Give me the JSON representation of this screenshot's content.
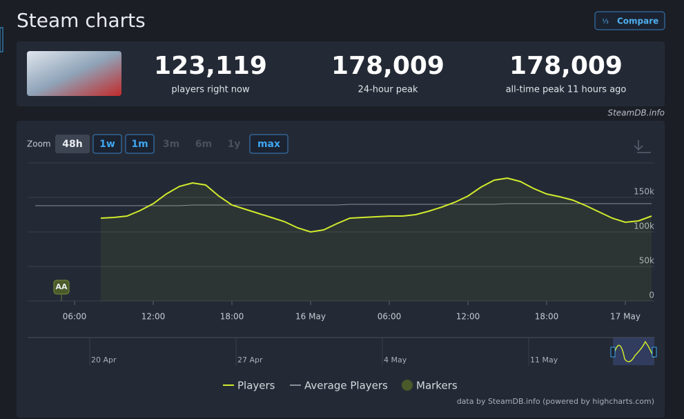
{
  "header": {
    "title": "Steam charts",
    "compare_button": "Compare"
  },
  "stats": [
    {
      "value": "123,119",
      "label": "players right now"
    },
    {
      "value": "178,009",
      "label": "24-hour peak"
    },
    {
      "value": "178,009",
      "label": "all-time peak 11 hours ago"
    }
  ],
  "source": "SteamDB.info",
  "zoom": {
    "label": "Zoom",
    "buttons": [
      "48h",
      "1w",
      "1m",
      "3m",
      "6m",
      "1y",
      "max"
    ],
    "active": 0,
    "disabled": [
      3,
      4,
      5
    ]
  },
  "chart_data": {
    "type": "line",
    "categories": [
      null,
      null,
      null,
      "06:00",
      null,
      null,
      null,
      null,
      null,
      "12:00",
      null,
      null,
      null,
      null,
      null,
      "18:00",
      null,
      null,
      null,
      null,
      null,
      "16 May",
      null,
      null,
      null,
      null,
      null,
      "06:00",
      null,
      null,
      null,
      null,
      null,
      "12:00",
      null,
      null,
      null,
      null,
      null,
      "18:00",
      null,
      null,
      null,
      null,
      null,
      "17 May",
      null,
      null
    ],
    "series": [
      {
        "name": "Players",
        "color": "#d2ec2d",
        "values": [
          null,
          null,
          null,
          null,
          null,
          120000,
          121000,
          123000,
          131000,
          141000,
          155000,
          166000,
          171000,
          168000,
          152000,
          139000,
          133000,
          127000,
          121000,
          115000,
          106000,
          100000,
          103000,
          112000,
          120000,
          121000,
          122000,
          123000,
          123000,
          125000,
          130000,
          136000,
          143000,
          152000,
          165000,
          175000,
          178000,
          173000,
          163000,
          155000,
          151000,
          146000,
          138000,
          129000,
          120000,
          114000,
          116000,
          123000
        ]
      },
      {
        "name": "Average Players",
        "color": "#8a8f98",
        "values": [
          138000,
          138000,
          138000,
          138000,
          138000,
          138000,
          138000,
          138000,
          138000,
          138000,
          138000,
          138000,
          139000,
          139000,
          139000,
          139000,
          139000,
          139000,
          139000,
          139000,
          139000,
          139000,
          139000,
          139000,
          140000,
          140000,
          140000,
          140000,
          140000,
          140000,
          140000,
          140000,
          140000,
          140000,
          140000,
          140000,
          141000,
          141000,
          141000,
          141000,
          141000,
          141000,
          141000,
          141000,
          141000,
          141000,
          141000,
          141000
        ]
      }
    ],
    "markers_legend": "Markers",
    "markers_color": "#4a5a2a",
    "markers": [
      {
        "label": "AA",
        "at": 1
      }
    ],
    "ylim": [
      0,
      200000
    ],
    "yticks": [
      {
        "value": 0,
        "label": "0"
      },
      {
        "value": 50000,
        "label": "50k"
      },
      {
        "value": 100000,
        "label": "100k"
      },
      {
        "value": 150000,
        "label": "150k"
      }
    ],
    "grid": true,
    "navigator_labels": [
      "20 Apr",
      "27 Apr",
      "4 May",
      "11 May"
    ],
    "credit": "data by SteamDB.info (powered by highcharts.com)"
  }
}
